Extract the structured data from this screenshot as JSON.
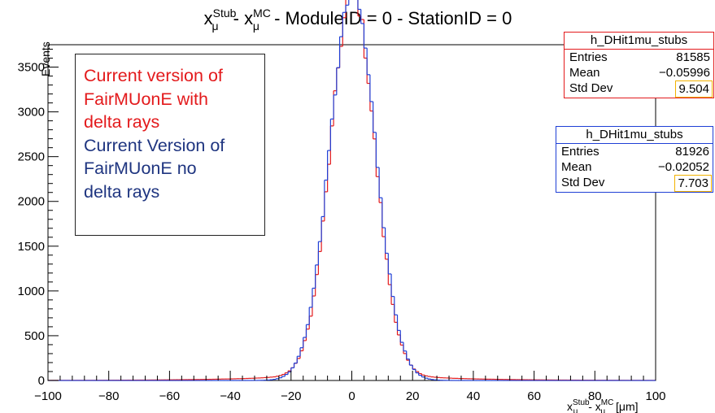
{
  "chart_data": {
    "type": "histogram",
    "title": "x_μ^Stub - x_μ^MC - ModuleID = 0 - StationID = 0",
    "xlabel": "x_μ^Stub - x_μ^MC [μm]",
    "ylabel": "Events",
    "xlim": [
      -100,
      100
    ],
    "ylim": [
      0,
      3750
    ],
    "xticks": [
      -100,
      -80,
      -60,
      -40,
      -20,
      0,
      20,
      40,
      60,
      80,
      100
    ],
    "yticks": [
      0,
      500,
      1000,
      1500,
      2000,
      2500,
      3000,
      3500
    ],
    "grid": false,
    "bin_width": 1,
    "bin_range": [
      -100,
      100
    ],
    "series": [
      {
        "name": "h_DHit1mu_stubs",
        "color": "#e31a1c",
        "stats": {
          "entries": "81585",
          "mean": "-0.05996",
          "std_dev": "9.504"
        }
      },
      {
        "name": "h_DHit1mu_stubs",
        "color": "#1f3fd6",
        "stats": {
          "entries": "81926",
          "mean": "-0.02052",
          "std_dev": "7.703"
        }
      }
    ]
  },
  "title": {
    "prefix": "x",
    "sup": "Stub",
    "sub": "μ",
    "minus": " - x",
    "sup2": "MC",
    "sub2": "μ",
    "rest": " - ModuleID = 0 - StationID = 0"
  },
  "axis": {
    "ylabel": "Events",
    "xlabel_prefix": "x",
    "xlabel_sup": "Stub",
    "xlabel_sub": "μ",
    "xlabel_minus": " - x",
    "xlabel_sup2": "MC",
    "xlabel_sub2": "μ",
    "xlabel_unit": " [μm]"
  },
  "stats_red": {
    "name": "h_DHit1mu_stubs",
    "entries_label": "Entries",
    "entries": "81585",
    "mean_label": "Mean",
    "mean": "−0.05996",
    "std_label": "Std Dev",
    "std": "9.504"
  },
  "stats_blue": {
    "name": "h_DHit1mu_stubs",
    "entries_label": "Entries",
    "entries": "81926",
    "mean_label": "Mean",
    "mean": "−0.02052",
    "std_label": "Std Dev",
    "std": "7.703"
  },
  "legend": {
    "red_lines": [
      "Current version of",
      "FairMUonE with",
      "delta rays"
    ],
    "blue_lines": [
      "Current Version of",
      "FairMUonE no",
      "delta rays"
    ]
  }
}
